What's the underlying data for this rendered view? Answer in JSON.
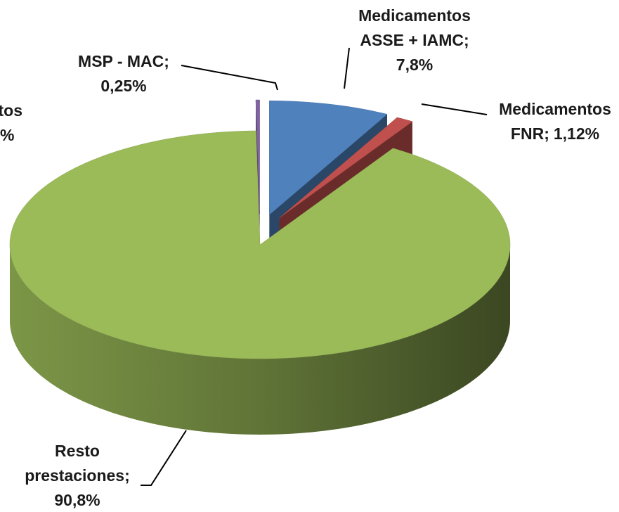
{
  "chart_data": {
    "type": "pie3d",
    "categories": [
      "Medicamentos ASSE + IAMC",
      "Medicamentos FNR",
      "Resto prestaciones",
      "MSP - MAC"
    ],
    "values": [
      7.8,
      1.12,
      90.8,
      0.25
    ],
    "value_labels": [
      "7,8%",
      "1,12%",
      "90,8%",
      "0,25%"
    ],
    "separator": ";",
    "colors": [
      "#4f81bd",
      "#c0504d",
      "#9bbb59",
      "#8064a2"
    ],
    "exploded": [
      true,
      true,
      false,
      true
    ],
    "annotations": [
      "tos",
      "%"
    ]
  }
}
